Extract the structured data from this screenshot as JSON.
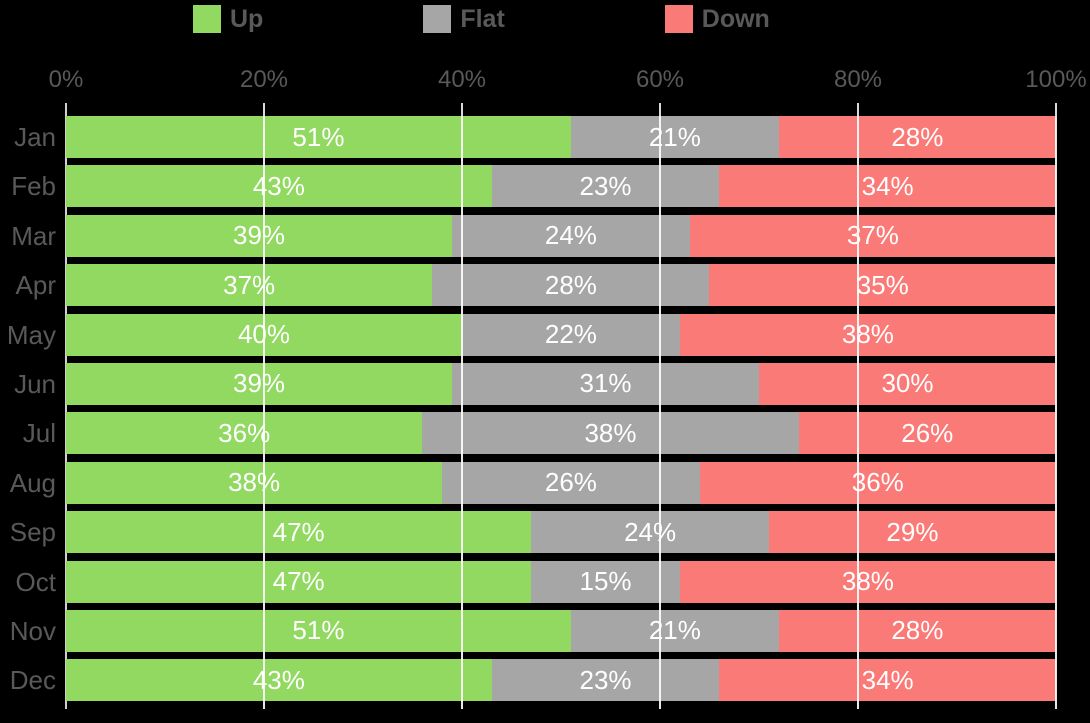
{
  "colors": {
    "background": "#000000",
    "up": "#92D962",
    "flat": "#A6A6A6",
    "down": "#FA7A78",
    "axis_text": "#595959",
    "bar_value_text": "#FFFFFF",
    "gridline": "#FFFFFF",
    "axis_line": "#CFCFCF"
  },
  "legend": {
    "items": [
      {
        "label": "Up",
        "color": "#92D962"
      },
      {
        "label": "Flat",
        "color": "#A6A6A6"
      },
      {
        "label": "Down",
        "color": "#FA7A78"
      }
    ]
  },
  "chart_data": {
    "type": "bar",
    "orientation": "horizontal",
    "stacked": true,
    "title": "",
    "xlabel": "",
    "ylabel": "",
    "xlim": [
      0,
      100
    ],
    "x_tick_labels": [
      "0%",
      "20%",
      "40%",
      "60%",
      "80%",
      "100%"
    ],
    "grid": true,
    "legend_position": "top",
    "value_suffix": "%",
    "categories": [
      "Jan",
      "Feb",
      "Mar",
      "Apr",
      "May",
      "Jun",
      "Jul",
      "Aug",
      "Sep",
      "Oct",
      "Nov",
      "Dec"
    ],
    "series": [
      {
        "name": "Up",
        "color": "#92D962",
        "values": [
          51,
          43,
          39,
          37,
          40,
          39,
          36,
          38,
          47,
          47,
          51,
          43
        ]
      },
      {
        "name": "Flat",
        "color": "#A6A6A6",
        "values": [
          21,
          23,
          24,
          28,
          22,
          31,
          38,
          26,
          24,
          15,
          21,
          23
        ]
      },
      {
        "name": "Down",
        "color": "#FA7A78",
        "values": [
          28,
          34,
          37,
          35,
          38,
          30,
          26,
          36,
          29,
          38,
          28,
          34
        ]
      }
    ]
  }
}
